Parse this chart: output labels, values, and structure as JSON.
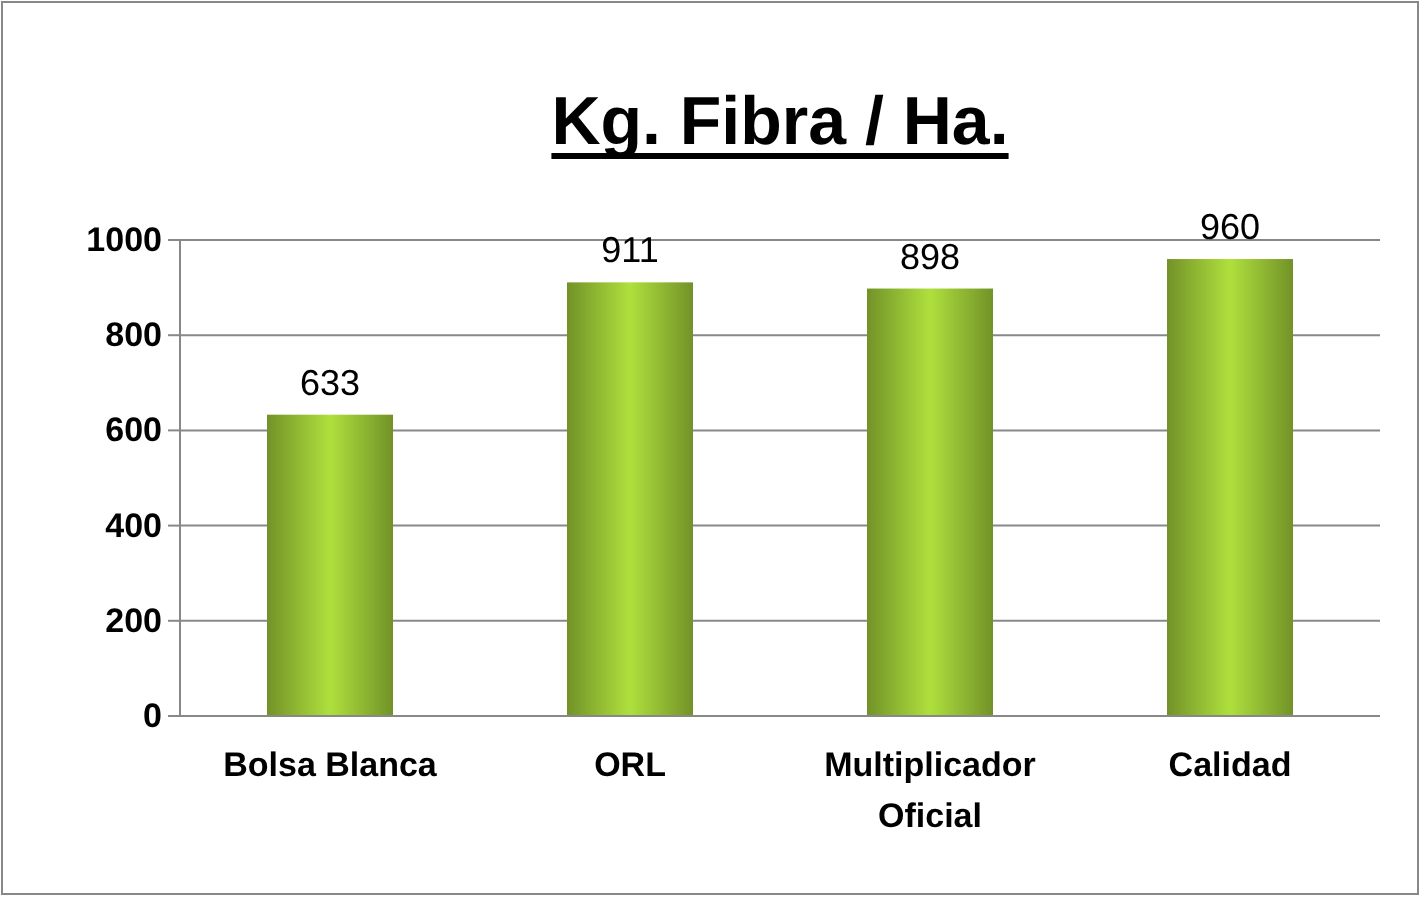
{
  "chart_data": {
    "type": "bar",
    "title": "Kg. Fibra / Ha.",
    "categories": [
      "Bolsa Blanca",
      "ORL",
      "Multiplicador Oficial",
      "Calidad"
    ],
    "values": [
      633,
      911,
      898,
      960
    ],
    "color": "#8db531",
    "ylim": [
      0,
      1000
    ],
    "yticks": [
      0,
      200,
      400,
      600,
      800,
      1000
    ],
    "grid": "y",
    "data_labels": true
  }
}
